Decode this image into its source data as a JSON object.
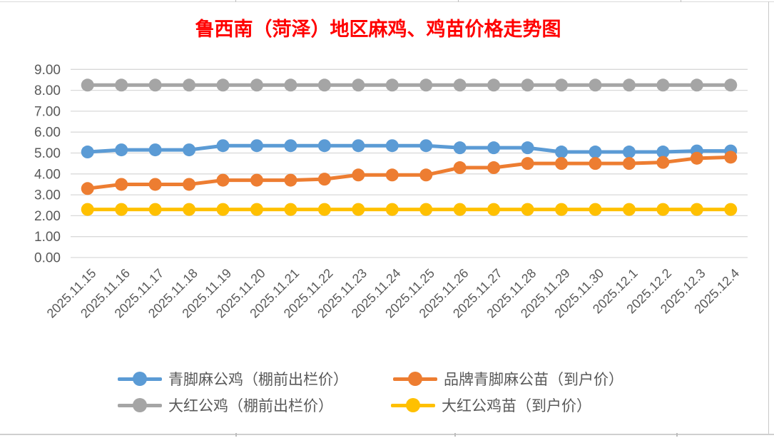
{
  "chart_data": {
    "type": "line",
    "title": "鲁西南（菏泽）地区麻鸡、鸡苗价格走势图",
    "title_color": "#FF0000",
    "xlabel": "",
    "ylabel": "",
    "ylim": [
      0,
      9
    ],
    "y_ticks": [
      "9.00",
      "8.00",
      "7.00",
      "6.00",
      "5.00",
      "4.00",
      "3.00",
      "2.00",
      "1.00",
      "0.00"
    ],
    "grid": true,
    "legend_position": "bottom",
    "axis_label_color": "#595959",
    "gridline_color": "#D9D9D9",
    "categories": [
      "2025.11.15",
      "2025.11.16",
      "2025.11.17",
      "2025.11.18",
      "2025.11.19",
      "2025.11.20",
      "2025.11.21",
      "2025.11.22",
      "2025.11.23",
      "2025.11.24",
      "2025.11.25",
      "2025.11.26",
      "2025.11.27",
      "2025.11.28",
      "2025.11.29",
      "2025.11.30",
      "2025.12.1",
      "2025.12.2",
      "2025.12.3",
      "2025.12.4"
    ],
    "series": [
      {
        "name": "青脚麻公鸡（棚前出栏价）",
        "color": "#5B9BD5",
        "values": [
          5.05,
          5.15,
          5.15,
          5.15,
          5.35,
          5.35,
          5.35,
          5.35,
          5.35,
          5.35,
          5.35,
          5.25,
          5.25,
          5.25,
          5.05,
          5.05,
          5.05,
          5.05,
          5.1,
          5.1
        ]
      },
      {
        "name": "品牌青脚麻公苗（到户价）",
        "color": "#ED7D31",
        "values": [
          3.3,
          3.5,
          3.5,
          3.5,
          3.7,
          3.7,
          3.7,
          3.75,
          3.95,
          3.95,
          3.95,
          4.3,
          4.3,
          4.5,
          4.5,
          4.5,
          4.5,
          4.55,
          4.75,
          4.8
        ]
      },
      {
        "name": "大红公鸡（棚前出栏价）",
        "color": "#A5A5A5",
        "values": [
          8.25,
          8.25,
          8.25,
          8.25,
          8.25,
          8.25,
          8.25,
          8.25,
          8.25,
          8.25,
          8.25,
          8.25,
          8.25,
          8.25,
          8.25,
          8.25,
          8.25,
          8.25,
          8.25,
          8.25
        ]
      },
      {
        "name": "大红公鸡苗（到户价）",
        "color": "#FFC000",
        "values": [
          2.3,
          2.3,
          2.3,
          2.3,
          2.3,
          2.3,
          2.3,
          2.3,
          2.3,
          2.3,
          2.3,
          2.3,
          2.3,
          2.3,
          2.3,
          2.3,
          2.3,
          2.3,
          2.3,
          2.3
        ]
      }
    ]
  }
}
